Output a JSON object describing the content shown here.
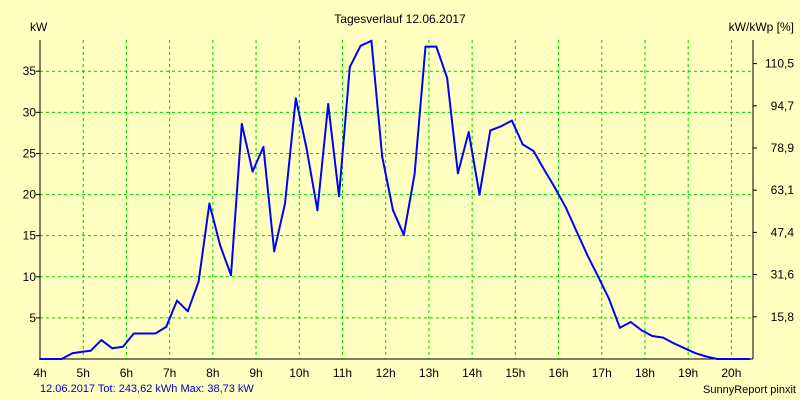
{
  "colors": {
    "background": "#ffffc0",
    "plot_background": "#ffffc0",
    "grid": "#00cc00",
    "series": "#0000ff",
    "axis": "#000000",
    "footer_text": "#0000cc"
  },
  "chart_data": {
    "type": "line",
    "title": "Tagesverlauf 12.06.2017",
    "ylabel": "kW",
    "ylabel_right": "kW/kWp [%]",
    "xlim": [
      4,
      20.5
    ],
    "ylim": [
      0,
      38.8
    ],
    "grid": true,
    "x_ticks": [
      4,
      5,
      6,
      7,
      8,
      9,
      10,
      11,
      12,
      13,
      14,
      15,
      16,
      17,
      18,
      19,
      20
    ],
    "x_tick_labels": [
      "4h",
      "5h",
      "6h",
      "7h",
      "8h",
      "9h",
      "10h",
      "11h",
      "12h",
      "13h",
      "14h",
      "15h",
      "16h",
      "17h",
      "18h",
      "19h",
      "20h"
    ],
    "y_ticks": [
      5,
      10,
      15,
      20,
      25,
      30,
      35
    ],
    "y_tick_labels": [
      "5",
      "10",
      "15",
      "20",
      "25",
      "30",
      "35"
    ],
    "y2_ticks": [
      5.13,
      10.27,
      15.4,
      20.53,
      25.66,
      30.8,
      35.93
    ],
    "y2_tick_labels": [
      "15,8",
      "31,6",
      "47,4",
      "63,1",
      "78,9",
      "94,7",
      "110,5"
    ],
    "series": [
      {
        "name": "kW",
        "x": [
          4.0,
          4.5,
          4.75,
          5.0,
          5.17,
          5.42,
          5.67,
          5.92,
          6.17,
          6.42,
          6.67,
          6.92,
          7.17,
          7.42,
          7.67,
          7.92,
          8.17,
          8.42,
          8.67,
          8.92,
          9.17,
          9.42,
          9.67,
          9.92,
          10.17,
          10.42,
          10.67,
          10.92,
          11.17,
          11.42,
          11.67,
          11.92,
          12.17,
          12.42,
          12.67,
          12.92,
          13.17,
          13.42,
          13.67,
          13.92,
          14.17,
          14.42,
          14.67,
          14.92,
          15.17,
          15.42,
          15.67,
          15.92,
          16.17,
          16.42,
          16.67,
          16.92,
          17.17,
          17.42,
          17.67,
          17.92,
          18.17,
          18.42,
          18.67,
          18.92,
          19.17,
          19.42,
          19.67,
          19.92,
          20.17,
          20.42
        ],
        "y": [
          0,
          0,
          0.7,
          0.9,
          1.0,
          2.3,
          1.3,
          1.5,
          3.1,
          3.1,
          3.1,
          3.9,
          7.1,
          5.8,
          9.4,
          18.9,
          13.8,
          10.2,
          28.6,
          22.8,
          25.8,
          13.1,
          18.9,
          31.7,
          25.6,
          18.1,
          31.0,
          19.8,
          35.5,
          38.1,
          38.7,
          24.6,
          18.1,
          15.1,
          22.5,
          38.0,
          38.0,
          34.2,
          22.6,
          27.6,
          20.0,
          27.8,
          28.3,
          29.0,
          26.1,
          25.3,
          23.0,
          20.8,
          18.4,
          15.5,
          12.6,
          10.0,
          7.3,
          3.8,
          4.5,
          3.5,
          2.8,
          2.6,
          1.9,
          1.3,
          0.7,
          0.3,
          0,
          0,
          0,
          0
        ]
      }
    ]
  },
  "footer": {
    "summary": "12.06.2017 Tot: 243,62 kWh Max: 38,73 kW",
    "credit": "SunnyReport pinxit"
  }
}
